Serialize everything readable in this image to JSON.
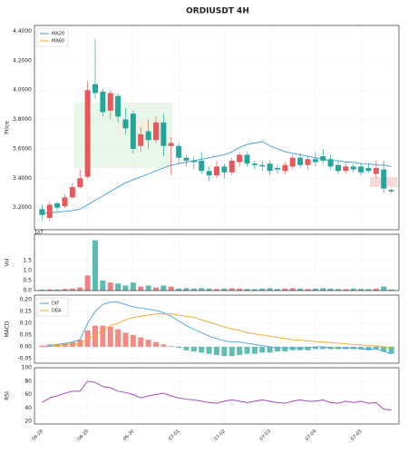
{
  "chart_data": [
    {
      "type": "candlestick",
      "title": "ORDIUSDT  4H",
      "ylabel": "Price",
      "open": [
        3.19,
        3.13,
        3.23,
        3.21,
        3.27,
        3.34,
        3.41,
        4.04,
        3.99,
        3.86,
        3.96,
        3.8,
        3.84,
        3.62,
        3.72,
        3.66,
        3.78,
        3.62,
        3.62,
        3.54,
        3.52,
        3.52,
        3.45,
        3.42,
        3.48,
        3.44,
        3.51,
        3.56,
        3.5,
        3.49,
        3.5,
        3.47,
        3.45,
        3.48,
        3.54,
        3.49,
        3.53,
        3.55,
        3.53,
        3.49,
        3.45,
        3.48,
        3.48,
        3.47,
        3.43,
        3.46,
        3.32
      ],
      "high": [
        3.22,
        3.24,
        3.24,
        3.29,
        3.37,
        3.46,
        4.06,
        4.35,
        4.01,
        4.0,
        3.98,
        3.88,
        3.86,
        3.75,
        3.8,
        3.82,
        3.84,
        3.68,
        3.64,
        3.56,
        3.55,
        3.58,
        3.48,
        3.52,
        3.5,
        3.54,
        3.58,
        3.58,
        3.52,
        3.52,
        3.52,
        3.49,
        3.51,
        3.56,
        3.57,
        3.55,
        3.58,
        3.6,
        3.56,
        3.52,
        3.5,
        3.5,
        3.5,
        3.5,
        3.52,
        3.52,
        3.33
      ],
      "low": [
        3.12,
        3.11,
        3.18,
        3.2,
        3.26,
        3.33,
        3.4,
        3.94,
        3.82,
        3.8,
        3.78,
        3.7,
        3.57,
        3.58,
        3.6,
        3.64,
        3.55,
        3.42,
        3.5,
        3.48,
        3.46,
        3.43,
        3.38,
        3.4,
        3.4,
        3.42,
        3.48,
        3.48,
        3.46,
        3.45,
        3.42,
        3.43,
        3.43,
        3.46,
        3.47,
        3.46,
        3.48,
        3.5,
        3.46,
        3.43,
        3.43,
        3.44,
        3.42,
        3.44,
        3.4,
        3.3,
        3.3
      ],
      "close": [
        3.15,
        3.22,
        3.2,
        3.27,
        3.34,
        3.4,
        4.0,
        3.98,
        3.85,
        3.98,
        3.82,
        3.74,
        3.6,
        3.7,
        3.66,
        3.78,
        3.62,
        3.64,
        3.54,
        3.52,
        3.51,
        3.45,
        3.42,
        3.48,
        3.44,
        3.52,
        3.56,
        3.5,
        3.49,
        3.48,
        3.45,
        3.46,
        3.49,
        3.54,
        3.49,
        3.53,
        3.51,
        3.52,
        3.48,
        3.45,
        3.48,
        3.46,
        3.44,
        3.45,
        3.47,
        3.33,
        3.31
      ],
      "up_color": "#e8585a",
      "down_color": "#26a69a",
      "series": [
        {
          "name": "MA20",
          "color": "#3a9ad9",
          "values": [
            3.16,
            3.165,
            3.17,
            3.175,
            3.18,
            3.19,
            3.22,
            3.25,
            3.28,
            3.31,
            3.34,
            3.37,
            3.39,
            3.41,
            3.43,
            3.45,
            3.47,
            3.49,
            3.5,
            3.51,
            3.52,
            3.53,
            3.54,
            3.55,
            3.56,
            3.58,
            3.61,
            3.63,
            3.64,
            3.65,
            3.62,
            3.6,
            3.58,
            3.57,
            3.56,
            3.55,
            3.54,
            3.53,
            3.52,
            3.52,
            3.51,
            3.51,
            3.5,
            3.5,
            3.49,
            3.49,
            3.48
          ]
        },
        {
          "name": "MA60",
          "color": "#ff9f1a",
          "values": [
            null,
            null,
            null,
            null,
            null,
            null,
            null,
            null,
            null,
            null,
            null,
            null,
            null,
            null,
            null,
            null,
            null,
            null,
            null,
            null,
            null,
            null,
            null,
            null,
            null,
            null,
            null,
            null,
            null,
            null,
            null,
            null,
            null,
            null,
            null,
            null,
            null,
            null,
            null,
            null,
            null,
            null,
            null,
            null,
            null,
            null,
            null
          ]
        }
      ],
      "ylim": [
        3.05,
        4.44
      ],
      "yticks": [
        {
          "value": 3.2,
          "label": "3.2000"
        },
        {
          "value": 3.4,
          "label": "3.4000"
        },
        {
          "value": 3.6,
          "label": "3.6000"
        },
        {
          "value": 3.8,
          "label": "3.8000"
        },
        {
          "value": 4.0,
          "label": "4.0000"
        },
        {
          "value": 4.2,
          "label": "4.2000"
        },
        {
          "value": 4.4,
          "label": "4.4000"
        }
      ],
      "grid": true,
      "legend": "upper left"
    },
    {
      "type": "bar",
      "ylabel": "Vol",
      "offset_label": "1e7",
      "values": [
        0.05,
        0.06,
        0.05,
        0.08,
        0.1,
        0.15,
        0.75,
        2.5,
        0.5,
        0.4,
        0.35,
        0.25,
        0.4,
        0.2,
        0.25,
        0.15,
        0.25,
        0.2,
        0.1,
        0.12,
        0.1,
        0.12,
        0.1,
        0.08,
        0.1,
        0.12,
        0.1,
        0.08,
        0.07,
        0.1,
        0.12,
        0.08,
        0.1,
        0.12,
        0.1,
        0.08,
        0.1,
        0.12,
        0.1,
        0.08,
        0.07,
        0.1,
        0.08,
        0.07,
        0.1,
        0.2,
        0.05
      ],
      "ylim": [
        0,
        2.8
      ],
      "yticks": [
        {
          "value": 0,
          "label": "0.0"
        },
        0.5,
        {
          "value": 1,
          "label": "1.0"
        },
        1.5
      ],
      "grid": true
    },
    {
      "type": "macd",
      "ylabel": "MACD",
      "series": [
        {
          "name": "DIF",
          "color": "#4aa3e0",
          "values": [
            0.0,
            0.005,
            0.01,
            0.015,
            0.02,
            0.03,
            0.1,
            0.15,
            0.18,
            0.19,
            0.19,
            0.18,
            0.17,
            0.165,
            0.16,
            0.155,
            0.145,
            0.13,
            0.11,
            0.09,
            0.075,
            0.06,
            0.045,
            0.035,
            0.025,
            0.02,
            0.02,
            0.015,
            0.01,
            0.005,
            0.0,
            -0.005,
            -0.005,
            -0.005,
            -0.005,
            -0.005,
            0.0,
            0.0,
            -0.005,
            -0.005,
            -0.005,
            -0.005,
            -0.01,
            -0.01,
            -0.01,
            -0.02,
            -0.03
          ]
        },
        {
          "name": "DEA",
          "color": "#f5a623",
          "values": [
            0.0,
            0.002,
            0.005,
            0.008,
            0.012,
            0.015,
            0.03,
            0.05,
            0.07,
            0.09,
            0.1,
            0.115,
            0.125,
            0.13,
            0.135,
            0.14,
            0.14,
            0.14,
            0.135,
            0.13,
            0.125,
            0.115,
            0.105,
            0.095,
            0.085,
            0.075,
            0.07,
            0.06,
            0.055,
            0.05,
            0.045,
            0.04,
            0.035,
            0.03,
            0.028,
            0.025,
            0.022,
            0.02,
            0.018,
            0.015,
            0.013,
            0.01,
            0.008,
            0.005,
            0.003,
            0.0,
            -0.005
          ]
        }
      ],
      "histogram": [
        0.005,
        0.01,
        0.01,
        0.015,
        0.02,
        0.03,
        0.07,
        0.09,
        0.09,
        0.085,
        0.075,
        0.06,
        0.05,
        0.04,
        0.03,
        0.02,
        0.01,
        0.003,
        -0.005,
        -0.015,
        -0.02,
        -0.025,
        -0.03,
        -0.035,
        -0.04,
        -0.04,
        -0.035,
        -0.03,
        -0.03,
        -0.025,
        -0.025,
        -0.02,
        -0.02,
        -0.015,
        -0.015,
        -0.015,
        -0.01,
        -0.01,
        -0.01,
        -0.01,
        -0.01,
        -0.01,
        -0.01,
        -0.015,
        -0.01,
        -0.02,
        -0.03
      ],
      "hist_up_color": "#f28b82",
      "hist_down_color": "#5fbfb4",
      "ylim": [
        -0.07,
        0.22
      ],
      "yticks": [
        -0.05,
        {
          "value": 0,
          "label": "0.00"
        },
        0.05,
        {
          "value": 0.1,
          "label": "0.10"
        },
        0.15,
        {
          "value": 0.2,
          "label": "0.20"
        }
      ],
      "grid": true,
      "legend": "upper left"
    },
    {
      "type": "line",
      "ylabel": "RSI",
      "values": [
        48,
        55,
        58,
        62,
        65,
        65,
        80,
        78,
        72,
        70,
        65,
        63,
        60,
        55,
        58,
        60,
        62,
        58,
        55,
        53,
        52,
        50,
        48,
        47,
        50,
        52,
        50,
        48,
        50,
        52,
        50,
        48,
        47,
        50,
        52,
        50,
        50,
        52,
        48,
        47,
        50,
        48,
        50,
        47,
        48,
        38,
        37
      ],
      "color": "#a64dbf",
      "ylim": [
        16,
        100
      ],
      "yticks": [
        20,
        40,
        60,
        80,
        100
      ],
      "xlim": [
        -1,
        47
      ],
      "xticks": [
        {
          "value": 0,
          "label": "06-28"
        },
        {
          "value": 6,
          "label": "06-29"
        },
        {
          "value": 12,
          "label": "06-30"
        },
        {
          "value": 18,
          "label": "07-01"
        },
        {
          "value": 24,
          "label": "07-02"
        },
        {
          "value": 30,
          "label": "07-03"
        },
        {
          "value": 36,
          "label": "07-04"
        },
        {
          "value": 42,
          "label": "07-05"
        }
      ],
      "grid": true
    }
  ]
}
